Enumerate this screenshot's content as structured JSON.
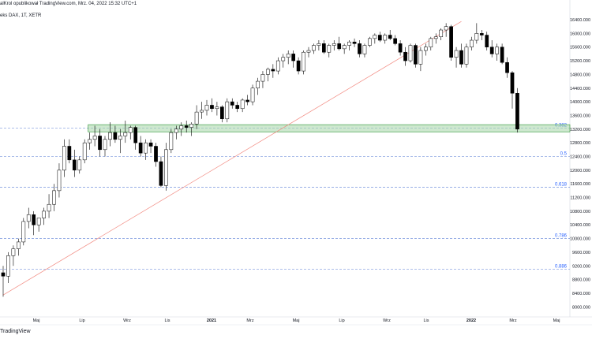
{
  "header": {
    "title": "alKrol opublikował TradingView.com, Mrz. 04, 2022 15:32 UTC+1",
    "symbol": "eks DAX, 1T, XETR"
  },
  "footer": {
    "brand": "TradingView"
  },
  "colors": {
    "up_fill": "#ffffff",
    "down_fill": "#000000",
    "wick": "#000000",
    "zone_fill": "#a5d6a7",
    "zone_border": "#43a047",
    "trendline": "#f28b82",
    "fib_line": "#5b7fd6",
    "fib_label": "#2962ff"
  },
  "chart_data": {
    "type": "candlestick",
    "y_axis": {
      "range": [
        7800,
        16700
      ],
      "ticks": [
        "8000.000",
        "8400.000",
        "8800.000",
        "9200.000",
        "9600.000",
        "10000.000",
        "10400.000",
        "10800.000",
        "11200.000",
        "11600.000",
        "12000.000",
        "12400.000",
        "12800.000",
        "13200.000",
        "13600.000",
        "14000.000",
        "14400.000",
        "14800.000",
        "15200.000",
        "15600.000",
        "16000.000",
        "16400.000"
      ]
    },
    "x_axis": {
      "ticks": [
        "Maj",
        "Lip",
        "Wrz",
        "Lis",
        "2021",
        "Mrz",
        "Maj",
        "Lip",
        "Wrz",
        "Lis",
        "2022",
        "Mrz",
        "Maj"
      ],
      "bold": [
        "2021",
        "2022"
      ]
    },
    "candles": [
      [
        9000,
        9200,
        8300,
        8900
      ],
      [
        8900,
        9600,
        8700,
        9500
      ],
      [
        9500,
        9800,
        9200,
        9700
      ],
      [
        9700,
        10000,
        9500,
        9900
      ],
      [
        9900,
        10600,
        9800,
        10500
      ],
      [
        10500,
        10900,
        10300,
        10700
      ],
      [
        10700,
        10800,
        10100,
        10400
      ],
      [
        10400,
        10600,
        10200,
        10600
      ],
      [
        10600,
        10900,
        10400,
        10800
      ],
      [
        10800,
        11300,
        10600,
        11000
      ],
      [
        11000,
        11600,
        10800,
        11400
      ],
      [
        11400,
        12200,
        11200,
        12000
      ],
      [
        12000,
        12900,
        11800,
        12700
      ],
      [
        12700,
        12900,
        12200,
        12300
      ],
      [
        12300,
        12600,
        11800,
        12000
      ],
      [
        12000,
        12400,
        11900,
        12300
      ],
      [
        12300,
        12900,
        12200,
        12800
      ],
      [
        12800,
        13100,
        12600,
        12900
      ],
      [
        12900,
        13300,
        12700,
        13000
      ],
      [
        13000,
        13200,
        12400,
        12600
      ],
      [
        12600,
        13000,
        12400,
        12900
      ],
      [
        12900,
        13400,
        12700,
        13100
      ],
      [
        13100,
        13300,
        12800,
        12900
      ],
      [
        12900,
        13200,
        12500,
        13000
      ],
      [
        13000,
        13450,
        12800,
        13100
      ],
      [
        13100,
        13300,
        12900,
        13250
      ],
      [
        13250,
        13300,
        12600,
        12800
      ],
      [
        12800,
        13000,
        12400,
        12500
      ],
      [
        12500,
        12900,
        12300,
        12800
      ],
      [
        12800,
        12900,
        12500,
        12700
      ],
      [
        12700,
        12800,
        12100,
        12250
      ],
      [
        12250,
        12400,
        11500,
        11550
      ],
      [
        11550,
        12800,
        11400,
        12600
      ],
      [
        12600,
        13200,
        12500,
        13100
      ],
      [
        13100,
        13300,
        12900,
        13200
      ],
      [
        13200,
        13400,
        13000,
        13300
      ],
      [
        13300,
        13450,
        13100,
        13250
      ],
      [
        13250,
        13400,
        13000,
        13350
      ],
      [
        13350,
        13900,
        13200,
        13700
      ],
      [
        13700,
        14000,
        13500,
        13750
      ],
      [
        13750,
        14050,
        13600,
        13900
      ],
      [
        13900,
        14100,
        13700,
        13800
      ],
      [
        13800,
        14000,
        13600,
        13850
      ],
      [
        13850,
        13900,
        13400,
        13500
      ],
      [
        13500,
        14100,
        13400,
        14000
      ],
      [
        14000,
        14100,
        13800,
        13900
      ],
      [
        13900,
        14000,
        13700,
        13800
      ],
      [
        13800,
        14100,
        13700,
        14050
      ],
      [
        14050,
        14200,
        13900,
        14000
      ],
      [
        14000,
        14500,
        13900,
        14400
      ],
      [
        14400,
        14700,
        14200,
        14600
      ],
      [
        14600,
        14900,
        14400,
        14800
      ],
      [
        14800,
        15000,
        14600,
        14950
      ],
      [
        14950,
        15100,
        14700,
        14900
      ],
      [
        14900,
        15300,
        14800,
        15200
      ],
      [
        15200,
        15400,
        15000,
        15300
      ],
      [
        15300,
        15500,
        15100,
        15400
      ],
      [
        15400,
        15500,
        15000,
        15200
      ],
      [
        15200,
        15300,
        14800,
        14900
      ],
      [
        14900,
        15500,
        14800,
        15450
      ],
      [
        15450,
        15600,
        15300,
        15500
      ],
      [
        15500,
        15700,
        15400,
        15650
      ],
      [
        15650,
        15800,
        15500,
        15700
      ],
      [
        15700,
        15800,
        15400,
        15450
      ],
      [
        15450,
        15700,
        15300,
        15650
      ],
      [
        15650,
        15800,
        15500,
        15700
      ],
      [
        15700,
        15900,
        15500,
        15550
      ],
      [
        15550,
        15700,
        15400,
        15650
      ],
      [
        15650,
        15800,
        15500,
        15750
      ],
      [
        15750,
        15850,
        15600,
        15700
      ],
      [
        15700,
        15800,
        15300,
        15400
      ],
      [
        15400,
        15700,
        15300,
        15650
      ],
      [
        15650,
        15900,
        15600,
        15850
      ],
      [
        15850,
        16000,
        15700,
        15950
      ],
      [
        15950,
        16050,
        15750,
        15800
      ],
      [
        15800,
        16000,
        15700,
        15950
      ],
      [
        15950,
        16100,
        15800,
        15850
      ],
      [
        15850,
        15950,
        15650,
        15700
      ],
      [
        15700,
        15800,
        15350,
        15450
      ],
      [
        15450,
        15600,
        15050,
        15200
      ],
      [
        15200,
        15700,
        15150,
        15650
      ],
      [
        15650,
        15700,
        15000,
        15100
      ],
      [
        15100,
        15600,
        14900,
        15500
      ],
      [
        15500,
        15700,
        15350,
        15600
      ],
      [
        15600,
        15900,
        15500,
        15850
      ],
      [
        15850,
        16000,
        15700,
        15900
      ],
      [
        15900,
        16150,
        15800,
        16100
      ],
      [
        16100,
        16300,
        15900,
        16200
      ],
      [
        16200,
        16250,
        15200,
        15300
      ],
      [
        15300,
        15600,
        15000,
        15500
      ],
      [
        15500,
        15700,
        15000,
        15100
      ],
      [
        15100,
        15700,
        15000,
        15600
      ],
      [
        15600,
        15900,
        15500,
        15800
      ],
      [
        15800,
        16300,
        15700,
        16000
      ],
      [
        16000,
        16100,
        15800,
        15950
      ],
      [
        15950,
        16050,
        15500,
        15600
      ],
      [
        15600,
        15800,
        15300,
        15400
      ],
      [
        15400,
        15700,
        15200,
        15600
      ],
      [
        15600,
        15700,
        15100,
        15150
      ],
      [
        15150,
        15300,
        14700,
        14850
      ],
      [
        14850,
        14900,
        13800,
        14250
      ],
      [
        14250,
        14400,
        13100,
        13200
      ]
    ],
    "trendline": {
      "start": [
        0,
        8350
      ],
      "end": [
        90,
        16350
      ]
    },
    "zone": {
      "from_index": 17,
      "low": 13120,
      "high": 13330
    },
    "fib_levels": [
      {
        "label": "0.382",
        "value": 13230
      },
      {
        "label": "0.5",
        "value": 12400
      },
      {
        "label": "0.618",
        "value": 11500
      },
      {
        "label": "0.786",
        "value": 10000
      },
      {
        "label": "0.886",
        "value": 9100
      }
    ]
  }
}
